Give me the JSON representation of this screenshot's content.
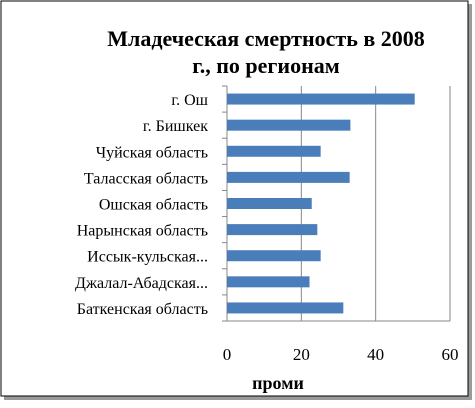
{
  "chart_data": {
    "type": "bar",
    "orientation": "horizontal",
    "title_lines": [
      "Младеческая смертность в 2008",
      "г., по регионам"
    ],
    "xlabel": "проми",
    "ylabel": "",
    "categories": [
      "г. Ош",
      "г. Бишкек",
      "Чуйская область",
      "Таласская область",
      "Ошская область",
      "Нарынская область",
      "Иссык-кульская...",
      "Джалал-Абадская...",
      "Баткенская область"
    ],
    "values": [
      50.5,
      33.2,
      25.2,
      33.0,
      22.8,
      24.3,
      25.2,
      22.2,
      31.3
    ],
    "xlim": [
      0,
      60
    ],
    "xticks": [
      "0",
      "20",
      "40",
      "60"
    ],
    "grid": "vertical",
    "legend": "none",
    "colors": {
      "bar": "#4a7ebb",
      "grid": "#878787",
      "axis": "#878787",
      "frame": "#000000"
    }
  }
}
